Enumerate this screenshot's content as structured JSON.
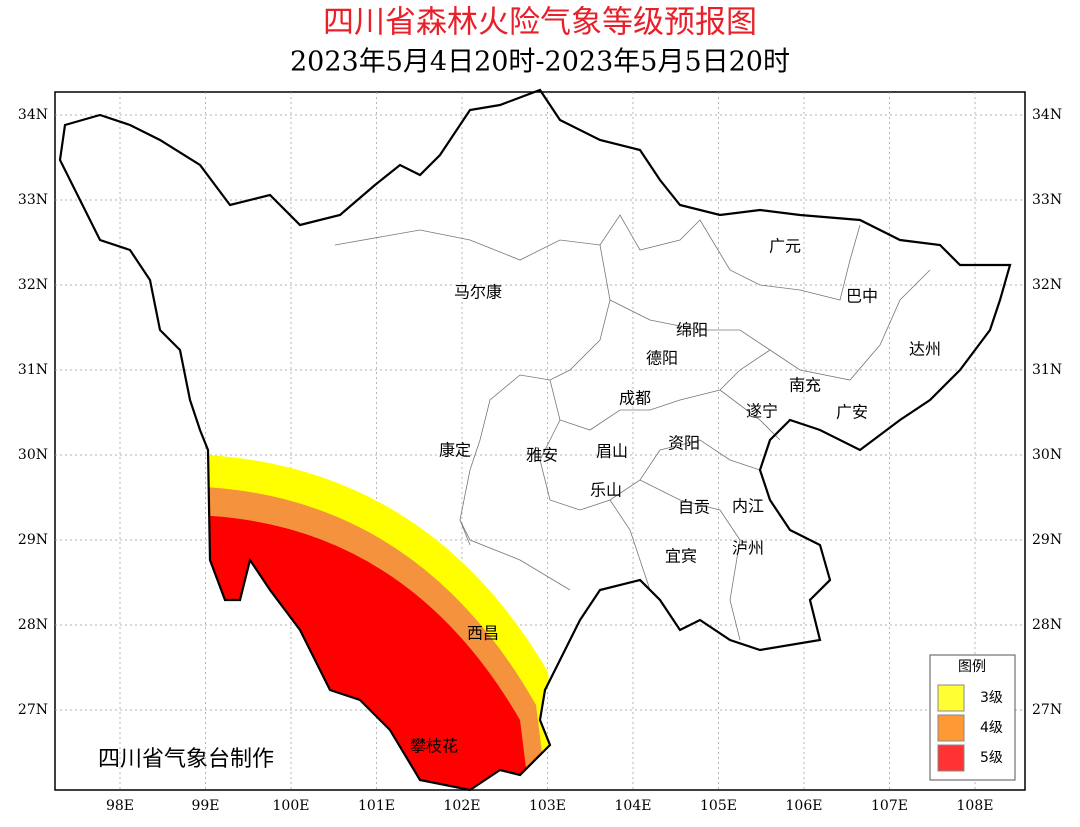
{
  "header": {
    "title": "四川省森林火险气象等级预报图",
    "subtitle": "2023年5月4日20时-2023年5月5日20时"
  },
  "axes": {
    "x_labels": [
      "98E",
      "99E",
      "100E",
      "101E",
      "102E",
      "103E",
      "104E",
      "105E",
      "106E",
      "107E",
      "108E"
    ],
    "y_labels": [
      "34N",
      "33N",
      "32N",
      "31N",
      "30N",
      "29N",
      "28N",
      "27N"
    ]
  },
  "cities": [
    "广元",
    "巴中",
    "马尔康",
    "绵阳",
    "达州",
    "德阳",
    "南充",
    "成都",
    "遂宁",
    "广安",
    "康定",
    "雅安",
    "眉山",
    "资阳",
    "乐山",
    "自贡",
    "内江",
    "泸州",
    "宜宾",
    "西昌",
    "攀枝花"
  ],
  "legend": {
    "title": "图例",
    "items": [
      {
        "label": "3级",
        "color": "#ffff33"
      },
      {
        "label": "4级",
        "color": "#ff9933"
      },
      {
        "label": "5级",
        "color": "#ff3333"
      }
    ]
  },
  "credit": "四川省气象台制作"
}
